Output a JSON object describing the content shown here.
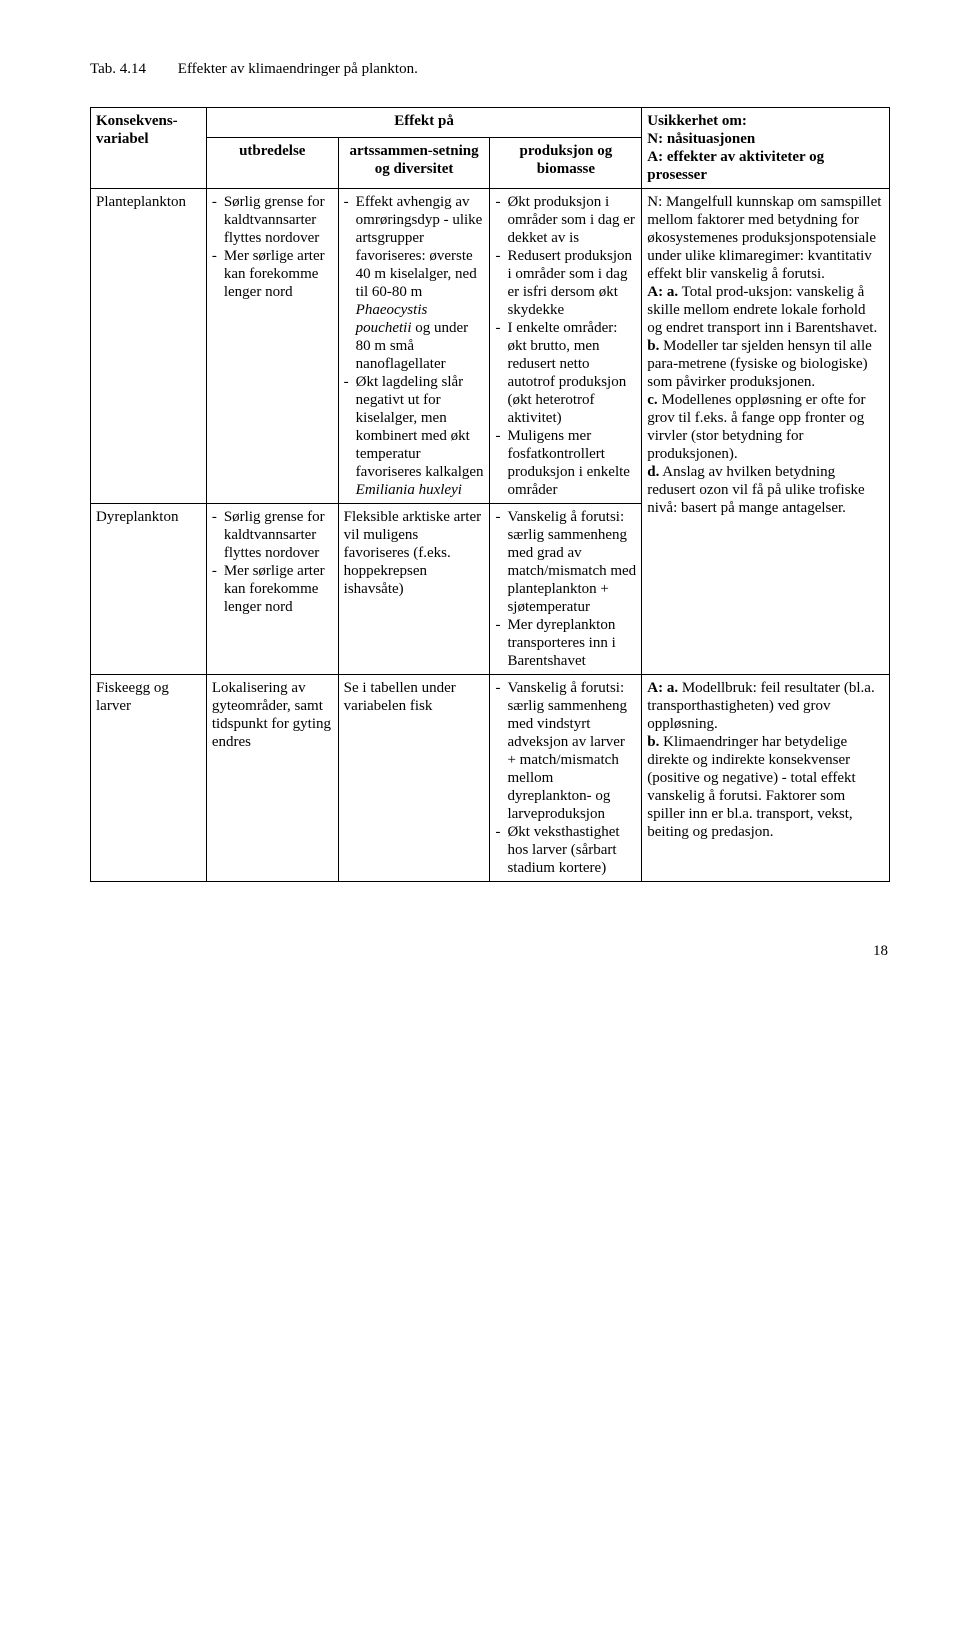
{
  "caption": {
    "label": "Tab. 4.14",
    "text": "Effekter av klimaendringer på plankton."
  },
  "page_number": "18",
  "table": {
    "head": {
      "konsekvens": "Konsekvens-variabel",
      "effekt_pa": "Effekt på",
      "utbredelse": "utbredelse",
      "artssammen": "artssammen-setning og diversitet",
      "produksjon": "produksjon og biomasse",
      "usikkerhet_title": "Usikkerhet om:",
      "usikkerhet_n": "N: nåsituasjonen",
      "usikkerhet_a": "A: effekter av aktiviteter og prosesser"
    },
    "rows": {
      "plante": {
        "label": "Planteplankton",
        "utbredelse": [
          "Sørlig grense for kaldtvannsarter flyttes nordover",
          "Mer sørlige arter kan forekomme lenger nord"
        ],
        "arts": {
          "item1_pre": "Effekt avhengig av omrøringsdyp - ulike artsgrupper favoriseres: øverste 40 m kiselalger, ned til 60-80 m ",
          "item1_em1": "Phaeocystis pouchetii",
          "item1_post": " og under 80 m små nanoflagellater",
          "item2_pre": "Økt lagdeling slår negativt ut for kiselalger, men kombinert med økt temperatur favoriseres kalkalgen ",
          "item2_em": "Emiliania huxleyi"
        },
        "prod": [
          "Økt produksjon i områder som i dag er dekket av is",
          "Redusert produksjon i områder som i dag er isfri dersom økt skydekke",
          "I enkelte områder: økt brutto, men redusert netto autotrof produksjon (økt heterotrof aktivitet)",
          "Muligens mer fosfatkontrollert produksjon i enkelte områder"
        ],
        "usikker": {
          "n": "N: Mangelfull kunnskap om samspillet mellom faktorer med betydning for økosystemenes produksjonspotensiale under ulike klimaregimer: kvantitativ effekt blir vanskelig å forutsi.",
          "a_a_label": "A: a.",
          "a_a": " Total prod-uksjon: vanskelig å skille mellom endrete lokale forhold og endret transport inn i Barentshavet.",
          "b_label": "b.",
          "b": " Modeller tar sjelden hensyn til alle para-metrene (fysiske og biologiske) som påvirker produksjonen.",
          "c_label": "c.",
          "c": " Modellenes oppløsning er ofte for grov til f.eks. å fange opp fronter og virvler (stor betydning for produksjonen).",
          "d_label": "d.",
          "d": " Anslag av hvilken betydning redusert ozon vil få på ulike trofiske nivå: basert på mange antagelser."
        }
      },
      "dyre": {
        "label": "Dyreplankton",
        "utbredelse": [
          "Sørlig grense for kaldtvannsarter flyttes nordover",
          "Mer sørlige arter kan forekomme lenger nord"
        ],
        "arts": "Fleksible arktiske arter vil muligens favoriseres (f.eks. hoppekrepsen ishavsåte)",
        "prod": [
          "Vanskelig å forutsi: særlig sammenheng med grad av match/mismatch med planteplankton + sjøtemperatur",
          "Mer dyreplankton transporteres inn i Barentshavet"
        ]
      },
      "fisk": {
        "label": "Fiskeegg og larver",
        "utbredelse": "Lokalisering av gyteområder, samt tidspunkt for gyting endres",
        "arts": "Se i tabellen under variabelen fisk",
        "prod": [
          "Vanskelig å forutsi: særlig sammenheng med vindstyrt adveksjon av larver + match/mismatch mellom dyreplankton- og larveproduksjon",
          "Økt veksthastighet hos larver (sårbart stadium kortere)"
        ],
        "usikker": {
          "a_a_label": "A: a.",
          "a_a": " Modellbruk: feil resultater (bl.a. transporthastigheten) ved grov oppløsning.",
          "b_label": "b.",
          "b": " Klimaendringer har betydelige direkte og indirekte konsekvenser (positive og negative) - total effekt vanskelig å forutsi. Faktorer som spiller inn er bl.a. transport, vekst, beiting og predasjon."
        }
      }
    }
  }
}
